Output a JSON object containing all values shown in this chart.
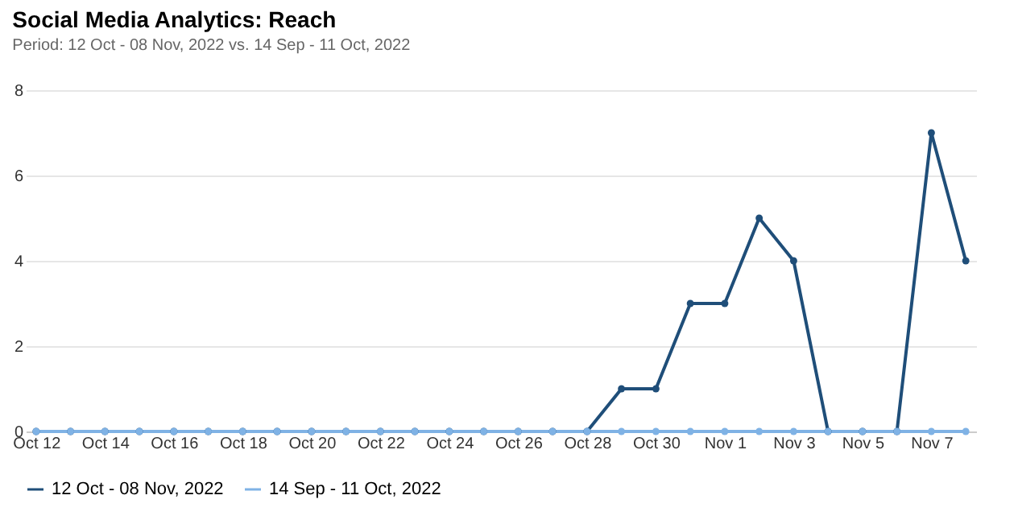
{
  "chart_data": {
    "type": "line",
    "title": "Social Media Analytics: Reach",
    "subtitle": "Period: 12 Oct - 08 Nov, 2022 vs. 14 Sep - 11 Oct, 2022",
    "categories": [
      "Oct 12",
      null,
      "Oct 14",
      null,
      "Oct 16",
      null,
      "Oct 18",
      null,
      "Oct 20",
      null,
      "Oct 22",
      null,
      "Oct 24",
      null,
      "Oct 26",
      null,
      "Oct 28",
      null,
      "Oct 30",
      null,
      "Nov 1",
      null,
      "Nov 3",
      null,
      "Nov 5",
      null,
      "Nov 7",
      null
    ],
    "series": [
      {
        "name": "12 Oct - 08 Nov, 2022",
        "color": "#1f4e79",
        "values": [
          0,
          0,
          0,
          0,
          0,
          0,
          0,
          0,
          0,
          0,
          0,
          0,
          0,
          0,
          0,
          0,
          0,
          1,
          1,
          3,
          3,
          5,
          4,
          0,
          0,
          0,
          7,
          4
        ]
      },
      {
        "name": "14 Sep - 11 Oct, 2022",
        "color": "#7fb2e5",
        "values": [
          0,
          0,
          0,
          0,
          0,
          0,
          0,
          0,
          0,
          0,
          0,
          0,
          0,
          0,
          0,
          0,
          0,
          0,
          0,
          0,
          0,
          0,
          0,
          0,
          0,
          0,
          0,
          0
        ]
      }
    ],
    "ylim": [
      0,
      8
    ],
    "yticks": [
      0,
      2,
      4,
      6,
      8
    ],
    "grid": "y",
    "legend": "bottom",
    "marker": "circle",
    "line_style": "solid"
  }
}
